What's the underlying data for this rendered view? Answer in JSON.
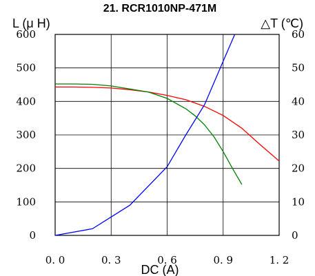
{
  "chart_data": {
    "type": "line",
    "title": "21. RCR1010NP-471M",
    "xlabel": "DC (A)",
    "ylabel_left": "L (μ H)",
    "ylabel_right": "△T (℃)",
    "xlim": [
      0,
      1.2
    ],
    "ylim_left": [
      0,
      600
    ],
    "ylim_right": [
      0,
      60
    ],
    "x_ticks": [
      "0. 0",
      "0. 3",
      "0. 6",
      "0. 9",
      "1. 2"
    ],
    "y_left_ticks": [
      "0",
      "100",
      "200",
      "300",
      "400",
      "500",
      "600"
    ],
    "y_right_ticks": [
      "0",
      "10",
      "20",
      "30",
      "40",
      "50",
      "60"
    ],
    "grid": true,
    "series": [
      {
        "color": "#ff0000",
        "axis": "left",
        "x": [
          0.0,
          0.1,
          0.2,
          0.3,
          0.4,
          0.5,
          0.6,
          0.7,
          0.8,
          0.9,
          1.0,
          1.1,
          1.2
        ],
        "y": [
          443,
          443,
          442,
          440,
          435,
          428,
          418,
          405,
          385,
          358,
          320,
          270,
          222
        ]
      },
      {
        "color": "#008000",
        "axis": "left",
        "x": [
          0.0,
          0.1,
          0.2,
          0.3,
          0.4,
          0.5,
          0.6,
          0.7,
          0.75,
          0.8,
          0.85,
          0.9,
          0.95,
          1.0
        ],
        "y": [
          452,
          452,
          451,
          446,
          437,
          428,
          409,
          378,
          357,
          330,
          295,
          250,
          200,
          152
        ]
      },
      {
        "color": "#0000ff",
        "axis": "right",
        "x": [
          0.0,
          0.2,
          0.4,
          0.6,
          0.7,
          0.8,
          0.9,
          0.97
        ],
        "y": [
          0,
          2,
          9,
          20.5,
          30,
          39,
          52,
          61
        ]
      }
    ]
  }
}
